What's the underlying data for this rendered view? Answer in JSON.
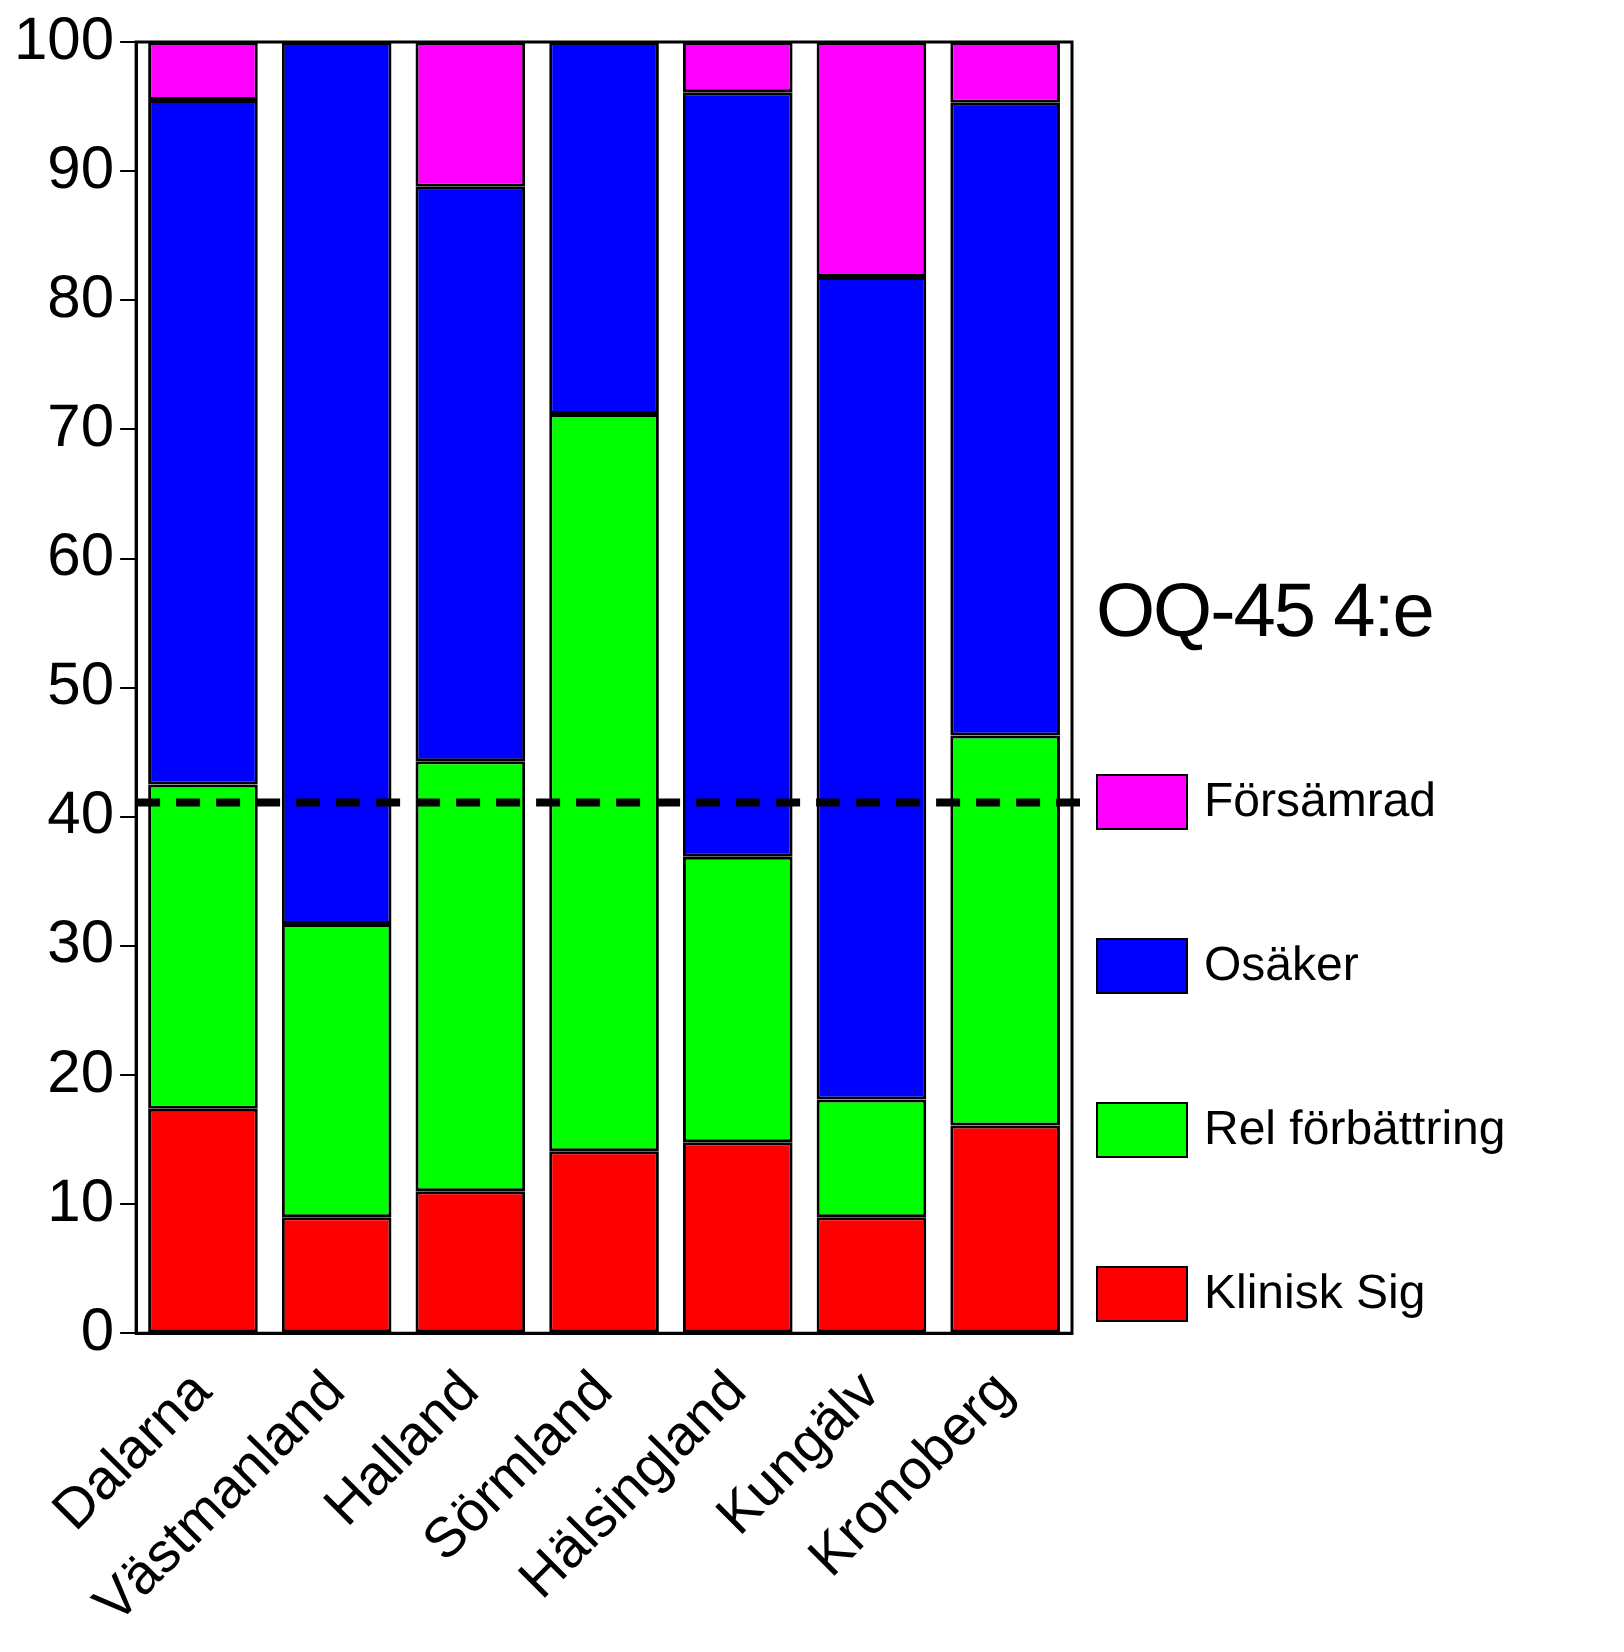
{
  "chart_data": {
    "type": "bar",
    "stacked": true,
    "legend_title": "OQ-45 4:e",
    "legend": "right",
    "grid": false,
    "categories": [
      "Dalarna",
      "Västmanland",
      "Halland",
      "Sörmland",
      "Hälsingland",
      "Kungälv",
      "Kronoberg"
    ],
    "series": [
      {
        "name": "Klinisk Sig",
        "color": "#ff0000",
        "values": [
          17.4,
          9.0,
          11.0,
          14.1,
          14.8,
          9.0,
          16.1
        ]
      },
      {
        "name": "Rel förbättring",
        "color": "#00ff00",
        "values": [
          25.1,
          22.7,
          33.3,
          57.1,
          22.1,
          9.1,
          30.2
        ]
      },
      {
        "name": "Osäker",
        "color": "#0000ff",
        "values": [
          53.0,
          68.3,
          44.5,
          28.8,
          59.2,
          63.7,
          49.0
        ]
      },
      {
        "name": "Försämrad",
        "color": "#ff00ff",
        "values": [
          4.5,
          0,
          11.2,
          0,
          3.9,
          18.2,
          4.7
        ]
      }
    ],
    "ylim": [
      0,
      100
    ],
    "yticks": [
      0,
      10,
      20,
      30,
      40,
      50,
      60,
      70,
      80,
      90,
      100
    ],
    "ref_lines": [
      {
        "axis": "y",
        "value": 41.1,
        "color": "#000000",
        "line_style": "dashed"
      }
    ]
  }
}
